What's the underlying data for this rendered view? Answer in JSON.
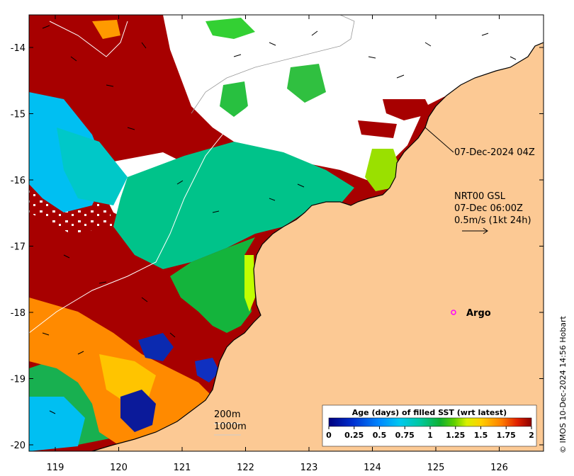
{
  "map": {
    "x_ticks": [
      "119",
      "120",
      "121",
      "122",
      "123",
      "124",
      "125",
      "126"
    ],
    "y_ticks": [
      "-14",
      "-15",
      "-16",
      "-17",
      "-18",
      "-19",
      "-20"
    ],
    "track_label": "07-Dec-2024 04Z",
    "current_info": {
      "line1": "NRT00 GSL",
      "line2": "07-Dec 06:00Z",
      "line3": "0.5m/s (1kt 24h)"
    },
    "argo_label": "Argo",
    "isobaths": [
      "200m",
      "1000m"
    ],
    "credit": "© IMOS 10-Dec-2024 14:56 Hobart"
  },
  "legend": {
    "title": "Age (days) of filled SST (wrt latest)",
    "ticks": [
      "0",
      "0.25",
      "0.5",
      "0.75",
      "1",
      "1.25",
      "1.5",
      "1.75",
      "2"
    ]
  },
  "colors": {
    "land": "#fcc994",
    "ocean_recent": "#a70000",
    "ocean_mid": "#00c38a",
    "ocean_green": "#14b43c",
    "ocean_cyan": "#00bff2",
    "ocean_orange": "#ff8a00",
    "ocean_deep": "#0b1a9a",
    "argo": "#ff00ff"
  }
}
